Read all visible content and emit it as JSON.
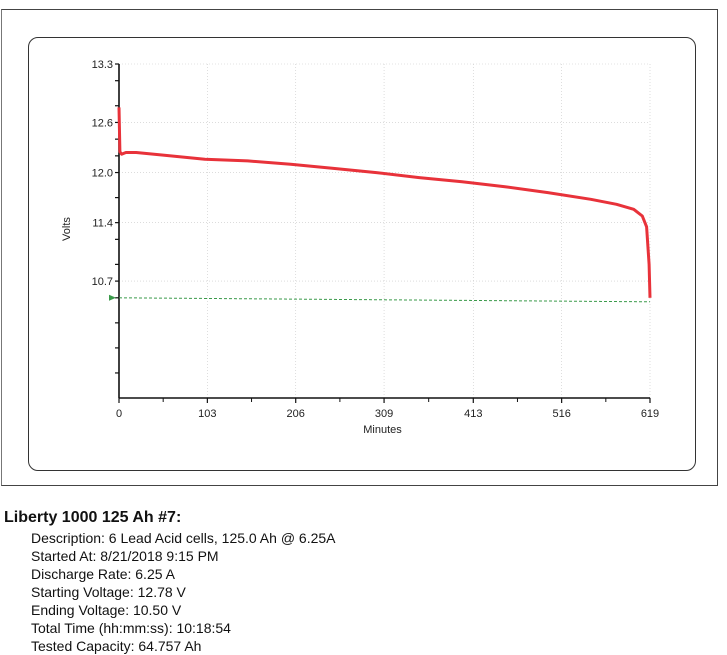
{
  "chart_data": {
    "type": "line",
    "title": "",
    "xlabel": "Minutes",
    "ylabel": "Volts",
    "xlim": [
      0,
      619
    ],
    "ylim": [
      9.3,
      13.3
    ],
    "x_ticks": [
      0,
      103,
      206,
      309,
      413,
      516,
      619
    ],
    "y_tick_labels": [
      13.3,
      12.6,
      12.0,
      11.4,
      10.7
    ],
    "y_minor_ticks": [
      13.3,
      13.1,
      12.8,
      12.6,
      12.4,
      12.2,
      12.0,
      11.7,
      11.4,
      11.2,
      10.9,
      10.7,
      10.5,
      10.2,
      9.9,
      9.6
    ],
    "grid": true,
    "series": [
      {
        "name": "",
        "color": "#e8323a",
        "x": [
          0,
          1,
          3,
          8,
          20,
          50,
          100,
          150,
          200,
          250,
          300,
          350,
          400,
          450,
          500,
          550,
          580,
          600,
          610,
          615,
          618,
          619
        ],
        "y": [
          12.78,
          12.25,
          12.22,
          12.24,
          12.24,
          12.21,
          12.16,
          12.14,
          12.1,
          12.05,
          12.0,
          11.94,
          11.89,
          11.83,
          11.76,
          11.68,
          11.62,
          11.56,
          11.48,
          11.35,
          10.9,
          10.5
        ]
      }
    ],
    "reference_line": {
      "y": 10.5,
      "color": "#3a9a4a",
      "style": "dashed"
    }
  },
  "info": {
    "title": "Liberty 1000 125 Ah #7:",
    "lines": [
      "Description: 6 Lead Acid cells, 125.0 Ah @ 6.25A",
      "Started At: 8/21/2018 9:15 PM",
      "Discharge Rate: 6.25 A",
      "Starting Voltage: 12.78 V",
      "Ending Voltage: 10.50 V",
      "Total Time (hh:mm:ss): 10:18:54",
      "Tested Capacity: 64.757 Ah"
    ]
  }
}
